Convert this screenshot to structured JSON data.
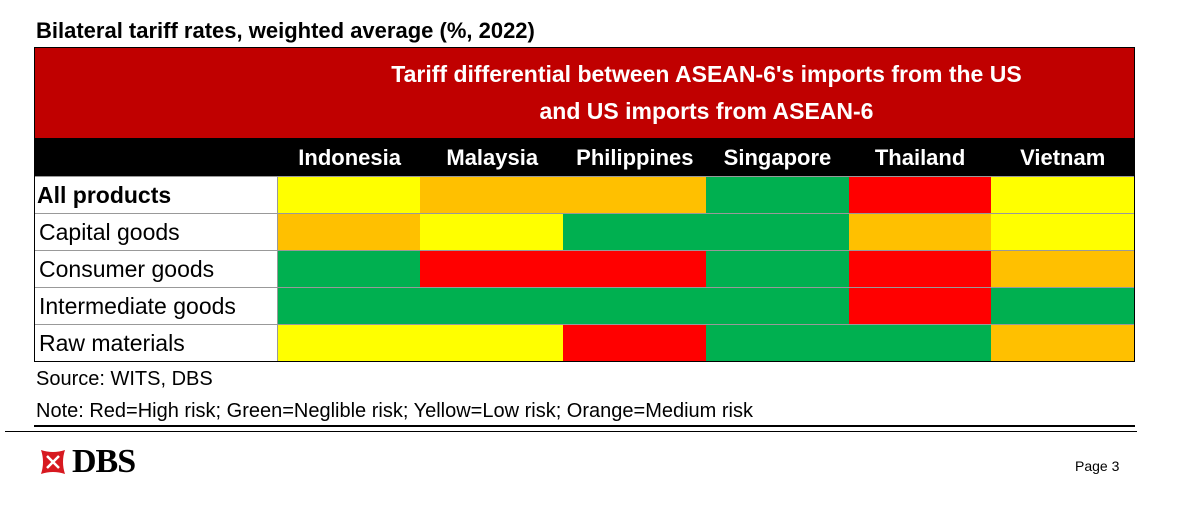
{
  "title": "Bilateral tariff rates, weighted average (%, 2022)",
  "chart_data": {
    "type": "heatmap",
    "banner": [
      "Tariff differential between ASEAN-6's imports from the US",
      "and US imports from ASEAN-6"
    ],
    "columns": [
      "Indonesia",
      "Malaysia",
      "Philippines",
      "Singapore",
      "Thailand",
      "Vietnam"
    ],
    "rows": [
      {
        "label": "All products",
        "bold": true,
        "values": [
          "Low",
          "Medium",
          "Medium",
          "Neglible",
          "High",
          "Low"
        ]
      },
      {
        "label": "Capital goods",
        "bold": false,
        "values": [
          "Medium",
          "Low",
          "Neglible",
          "Neglible",
          "Medium",
          "Low"
        ]
      },
      {
        "label": "Consumer goods",
        "bold": false,
        "values": [
          "Neglible",
          "High",
          "High",
          "Neglible",
          "High",
          "Medium"
        ]
      },
      {
        "label": "Intermediate goods",
        "bold": false,
        "values": [
          "Neglible",
          "Neglible",
          "Neglible",
          "Neglible",
          "High",
          "Neglible"
        ]
      },
      {
        "label": "Raw materials",
        "bold": false,
        "values": [
          "Low",
          "Low",
          "High",
          "Neglible",
          "Neglible",
          "Medium"
        ]
      }
    ],
    "colors": {
      "High": "#ff0000",
      "Neglible": "#00b050",
      "Low": "#ffff00",
      "Medium": "#ffc000"
    },
    "banner_color": "#c00000"
  },
  "source": "Source: WITS, DBS",
  "note": "Note: Red=High risk; Green=Neglible risk; Yellow=Low risk; Orange=Medium risk",
  "logo": "DBS",
  "page": "Page 3"
}
